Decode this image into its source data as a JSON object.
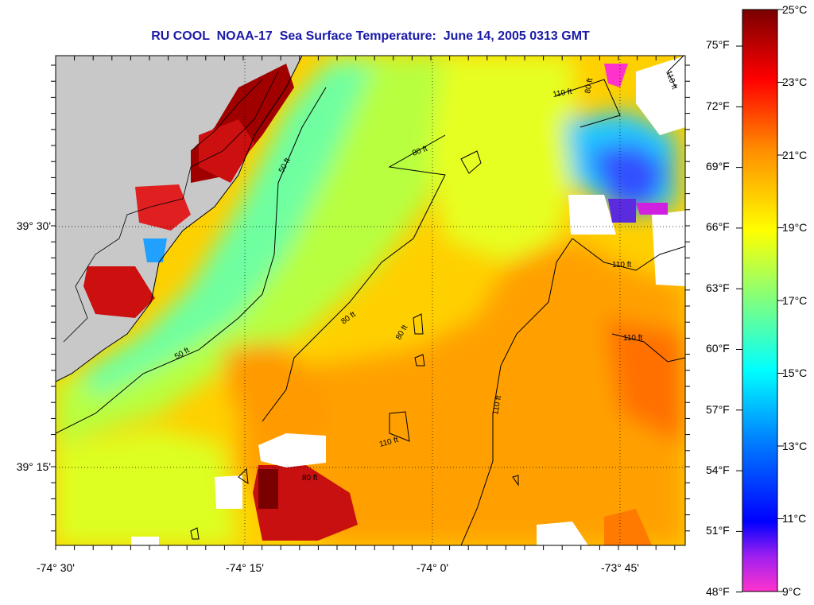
{
  "title": "RU COOL  NOAA-17  Sea Surface Temperature:  June 14, 2005 0313 GMT",
  "lat_labels": [
    "39° 30'",
    "39° 15'"
  ],
  "lon_labels": [
    "-74° 30'",
    "-74° 15'",
    "-74° 0'",
    "-73° 45'"
  ],
  "depth_labels": [
    "50 ft",
    "80 ft",
    "110 ft"
  ],
  "colorbar": {
    "fahrenheit": [
      "75°F",
      "72°F",
      "69°F",
      "66°F",
      "63°F",
      "60°F",
      "57°F",
      "54°F",
      "51°F",
      "48°F"
    ],
    "celsius": [
      "25°C",
      "23°C",
      "21°C",
      "19°C",
      "17°C",
      "15°C",
      "13°C",
      "11°C",
      "9°C"
    ],
    "colors": [
      "#7a0000",
      "#ff0000",
      "#ff8c00",
      "#ffff00",
      "#7fff7f",
      "#00ffff",
      "#0060ff",
      "#0000ff",
      "#7f00ff",
      "#ff00ff"
    ]
  },
  "colors": {
    "land": "#c8c8c8",
    "cloud": "#ffffff",
    "title": "#1a1aa8"
  }
}
